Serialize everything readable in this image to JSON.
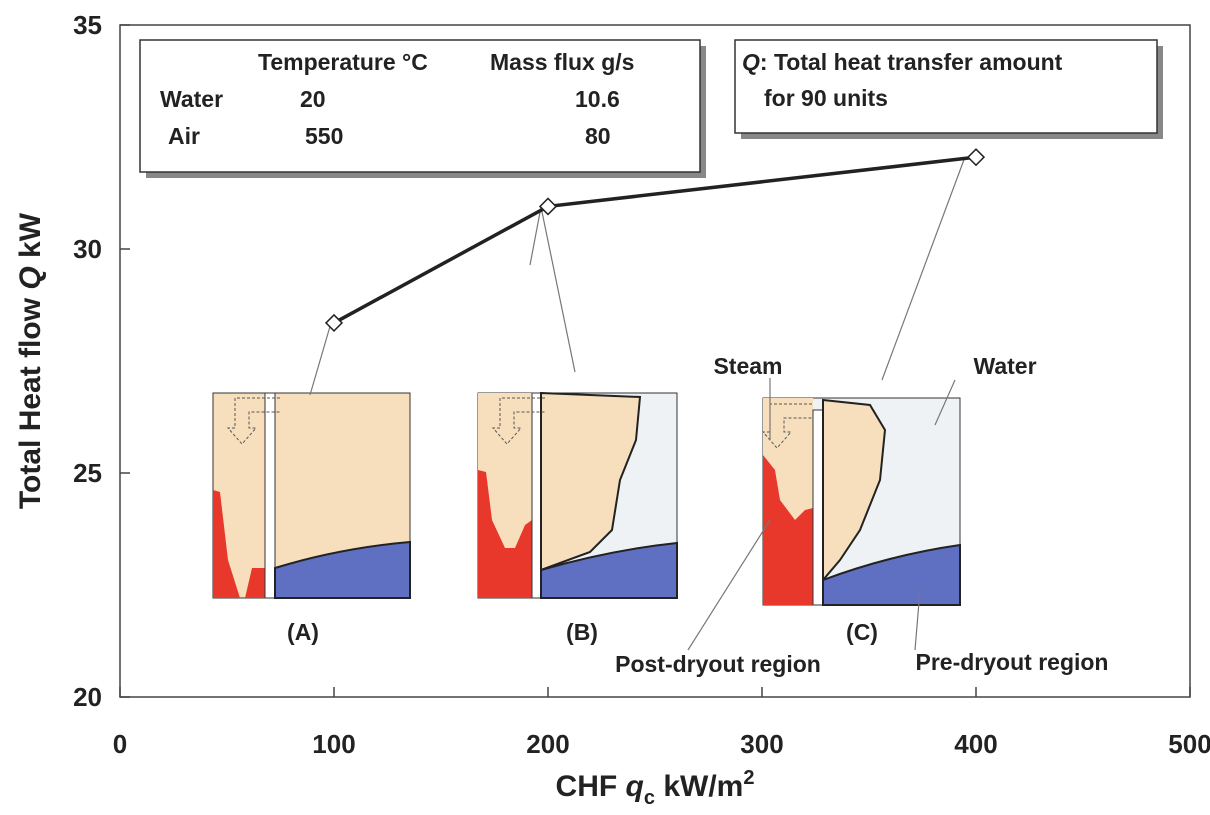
{
  "chart_data": {
    "type": "line",
    "ylabel": [
      "Total Heat flow ",
      "Q",
      " kW"
    ],
    "xlabel": [
      "CHF ",
      "q",
      "c",
      " kW/m",
      "2"
    ],
    "x": [
      100,
      200,
      400
    ],
    "series": [
      {
        "color": "#222222",
        "values": [
          28.35,
          30.95,
          32.05
        ]
      }
    ],
    "xlim": [
      0,
      500
    ],
    "xticks": [
      0,
      100,
      200,
      300,
      400,
      500
    ],
    "ylim": [
      20,
      35
    ],
    "yticks": [
      20,
      25,
      30,
      35
    ],
    "conditions": {
      "header": [
        "Temperature °C",
        "Mass flux g/s"
      ],
      "rows": [
        [
          "Water",
          20,
          10.6
        ],
        [
          "Air",
          550,
          80
        ]
      ]
    },
    "note": [
      "Q",
      ": Total heat transfer amount",
      "for 90 units"
    ],
    "insets": [
      "(A)",
      "(B)",
      "(C)"
    ],
    "annotations": [
      "Steam",
      "Water",
      "Post-dryout region",
      "Pre-dryout region"
    ]
  }
}
